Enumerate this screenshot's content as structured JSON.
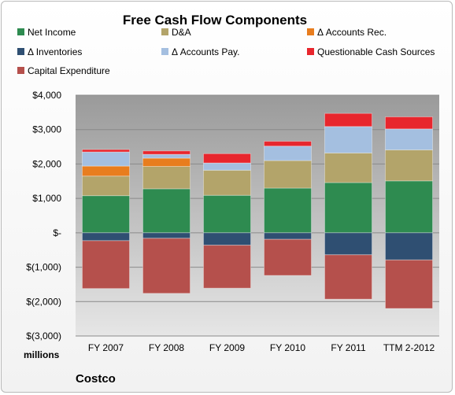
{
  "chart_data": {
    "type": "bar",
    "stacked": true,
    "title": "Free Cash Flow Components",
    "unit_label": "millions",
    "company_label": "Costco",
    "categories": [
      "FY 2007",
      "FY 2008",
      "FY 2009",
      "FY 2010",
      "FY 2011",
      "TTM 2-2012"
    ],
    "ylim": [
      -3000,
      4000
    ],
    "yticks": [
      {
        "value": 4000,
        "label": "$4,000"
      },
      {
        "value": 3000,
        "label": "$3,000"
      },
      {
        "value": 2000,
        "label": "$2,000"
      },
      {
        "value": 1000,
        "label": "$1,000"
      },
      {
        "value": 0,
        "label": "$-"
      },
      {
        "value": -1000,
        "label": "$(1,000)"
      },
      {
        "value": -2000,
        "label": "$(2,000)"
      },
      {
        "value": -3000,
        "label": "$(3,000)"
      }
    ],
    "grid": true,
    "legend_position": "top",
    "series": [
      {
        "name": "Net Income",
        "color": "#2e8b50",
        "values": [
          1080,
          1280,
          1090,
          1300,
          1460,
          1510
        ]
      },
      {
        "name": "D&A",
        "color": "#b3a46a",
        "values": [
          570,
          650,
          730,
          800,
          860,
          900
        ]
      },
      {
        "name": "Δ Accounts Rec.",
        "color": "#e87d1e",
        "values": [
          290,
          240,
          0,
          0,
          0,
          0
        ]
      },
      {
        "name": "Δ Inventories",
        "color": "#2f4f72",
        "values": [
          -230,
          -160,
          -360,
          -190,
          -640,
          -790
        ]
      },
      {
        "name": "Δ Accounts Pay.",
        "color": "#a4bfe0",
        "values": [
          410,
          110,
          210,
          420,
          770,
          610
        ]
      },
      {
        "name": "Questionable Cash Sources",
        "color": "#e8262d",
        "values": [
          70,
          100,
          270,
          140,
          380,
          350
        ]
      },
      {
        "name": "Capital Expenditure",
        "color": "#b5504c",
        "values": [
          -1390,
          -1600,
          -1250,
          -1050,
          -1290,
          -1410
        ]
      }
    ]
  }
}
